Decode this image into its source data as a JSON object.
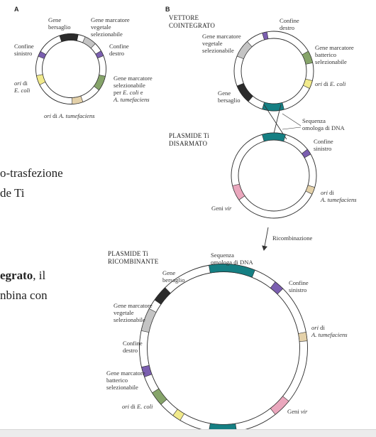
{
  "colors": {
    "ring": "#2a2a2a",
    "target_gene": "#2b2b2b",
    "plant_marker": "#c4c4c4",
    "border": "#7b5fb0",
    "bacterial_marker": "#86a46a",
    "ori_ecoli": "#f1ea8c",
    "ori_agro": "#e4d1a9",
    "homology": "#157f83",
    "vir": "#eaa7bd",
    "leader": "#333333"
  },
  "panels": {
    "a": "A",
    "b": "B"
  },
  "background_text": {
    "line1": "o-trasfezione",
    "line2": "de Ti",
    "line3_bold": "egrato",
    "line3_rest": ", il",
    "line4": "nbina con"
  },
  "plasmid_a": {
    "target": [
      "Gene",
      "bersaglio"
    ],
    "plant_marker": [
      "Gene marcatore",
      "vegetale",
      "selezionabile"
    ],
    "left_border": [
      "Confine",
      "sinistro"
    ],
    "right_border": [
      "Confine",
      "destro"
    ],
    "ori_ecoli": [
      "ori",
      " di ",
      "E. coli"
    ],
    "dual_marker": [
      "Gene marcatore",
      "selezionabile",
      "per ",
      "E. coli",
      " e",
      "A. tumefaciens"
    ],
    "ori_agro": [
      "ori",
      " di ",
      "A. tumefaciens"
    ]
  },
  "cointegrate": {
    "title": [
      "VETTORE",
      "COINTEGRATO"
    ],
    "right_border": [
      "Confine",
      "destro"
    ],
    "plant_marker": [
      "Gene marcatore",
      "vegetale",
      "selezionabile"
    ],
    "bacterial_marker": [
      "Gene marcatore",
      "batterico",
      "selezionabile"
    ],
    "ori_ecoli": [
      "ori",
      " di ",
      "E. coli"
    ],
    "target": [
      "Gene",
      "bersaglio"
    ],
    "homology": [
      "Sequenza",
      "omologa di DNA"
    ]
  },
  "disarmed_ti": {
    "title": [
      "PLASMIDE Ti",
      "DISARMATO"
    ],
    "left_border": [
      "Confine",
      "sinistro"
    ],
    "ori_agro": [
      "ori",
      " di",
      "A. tumefaciens"
    ],
    "vir": [
      "Geni ",
      "vir"
    ]
  },
  "arrow_label": "Ricombinazione",
  "recombinant": {
    "title": [
      "PLASMIDE Ti",
      "RICOMBINANTE"
    ],
    "homology": [
      "Sequenza",
      "omologa di DNA"
    ],
    "target": [
      "Gene",
      "bersaglio"
    ],
    "left_border": [
      "Confine",
      "sinistro"
    ],
    "plant_marker": [
      "Gene marcatore",
      "vegetale",
      "selezionabile"
    ],
    "ori_agro": [
      "ori",
      " di",
      "A. tumefaciens"
    ],
    "right_border": [
      "Confine",
      "destro"
    ],
    "bacterial_marker": [
      "Gene marcatore",
      "batterico",
      "selezionabile"
    ],
    "ori_ecoli": [
      "ori",
      " di ",
      "E. coli"
    ],
    "vir": [
      "Geni ",
      "vir"
    ]
  }
}
